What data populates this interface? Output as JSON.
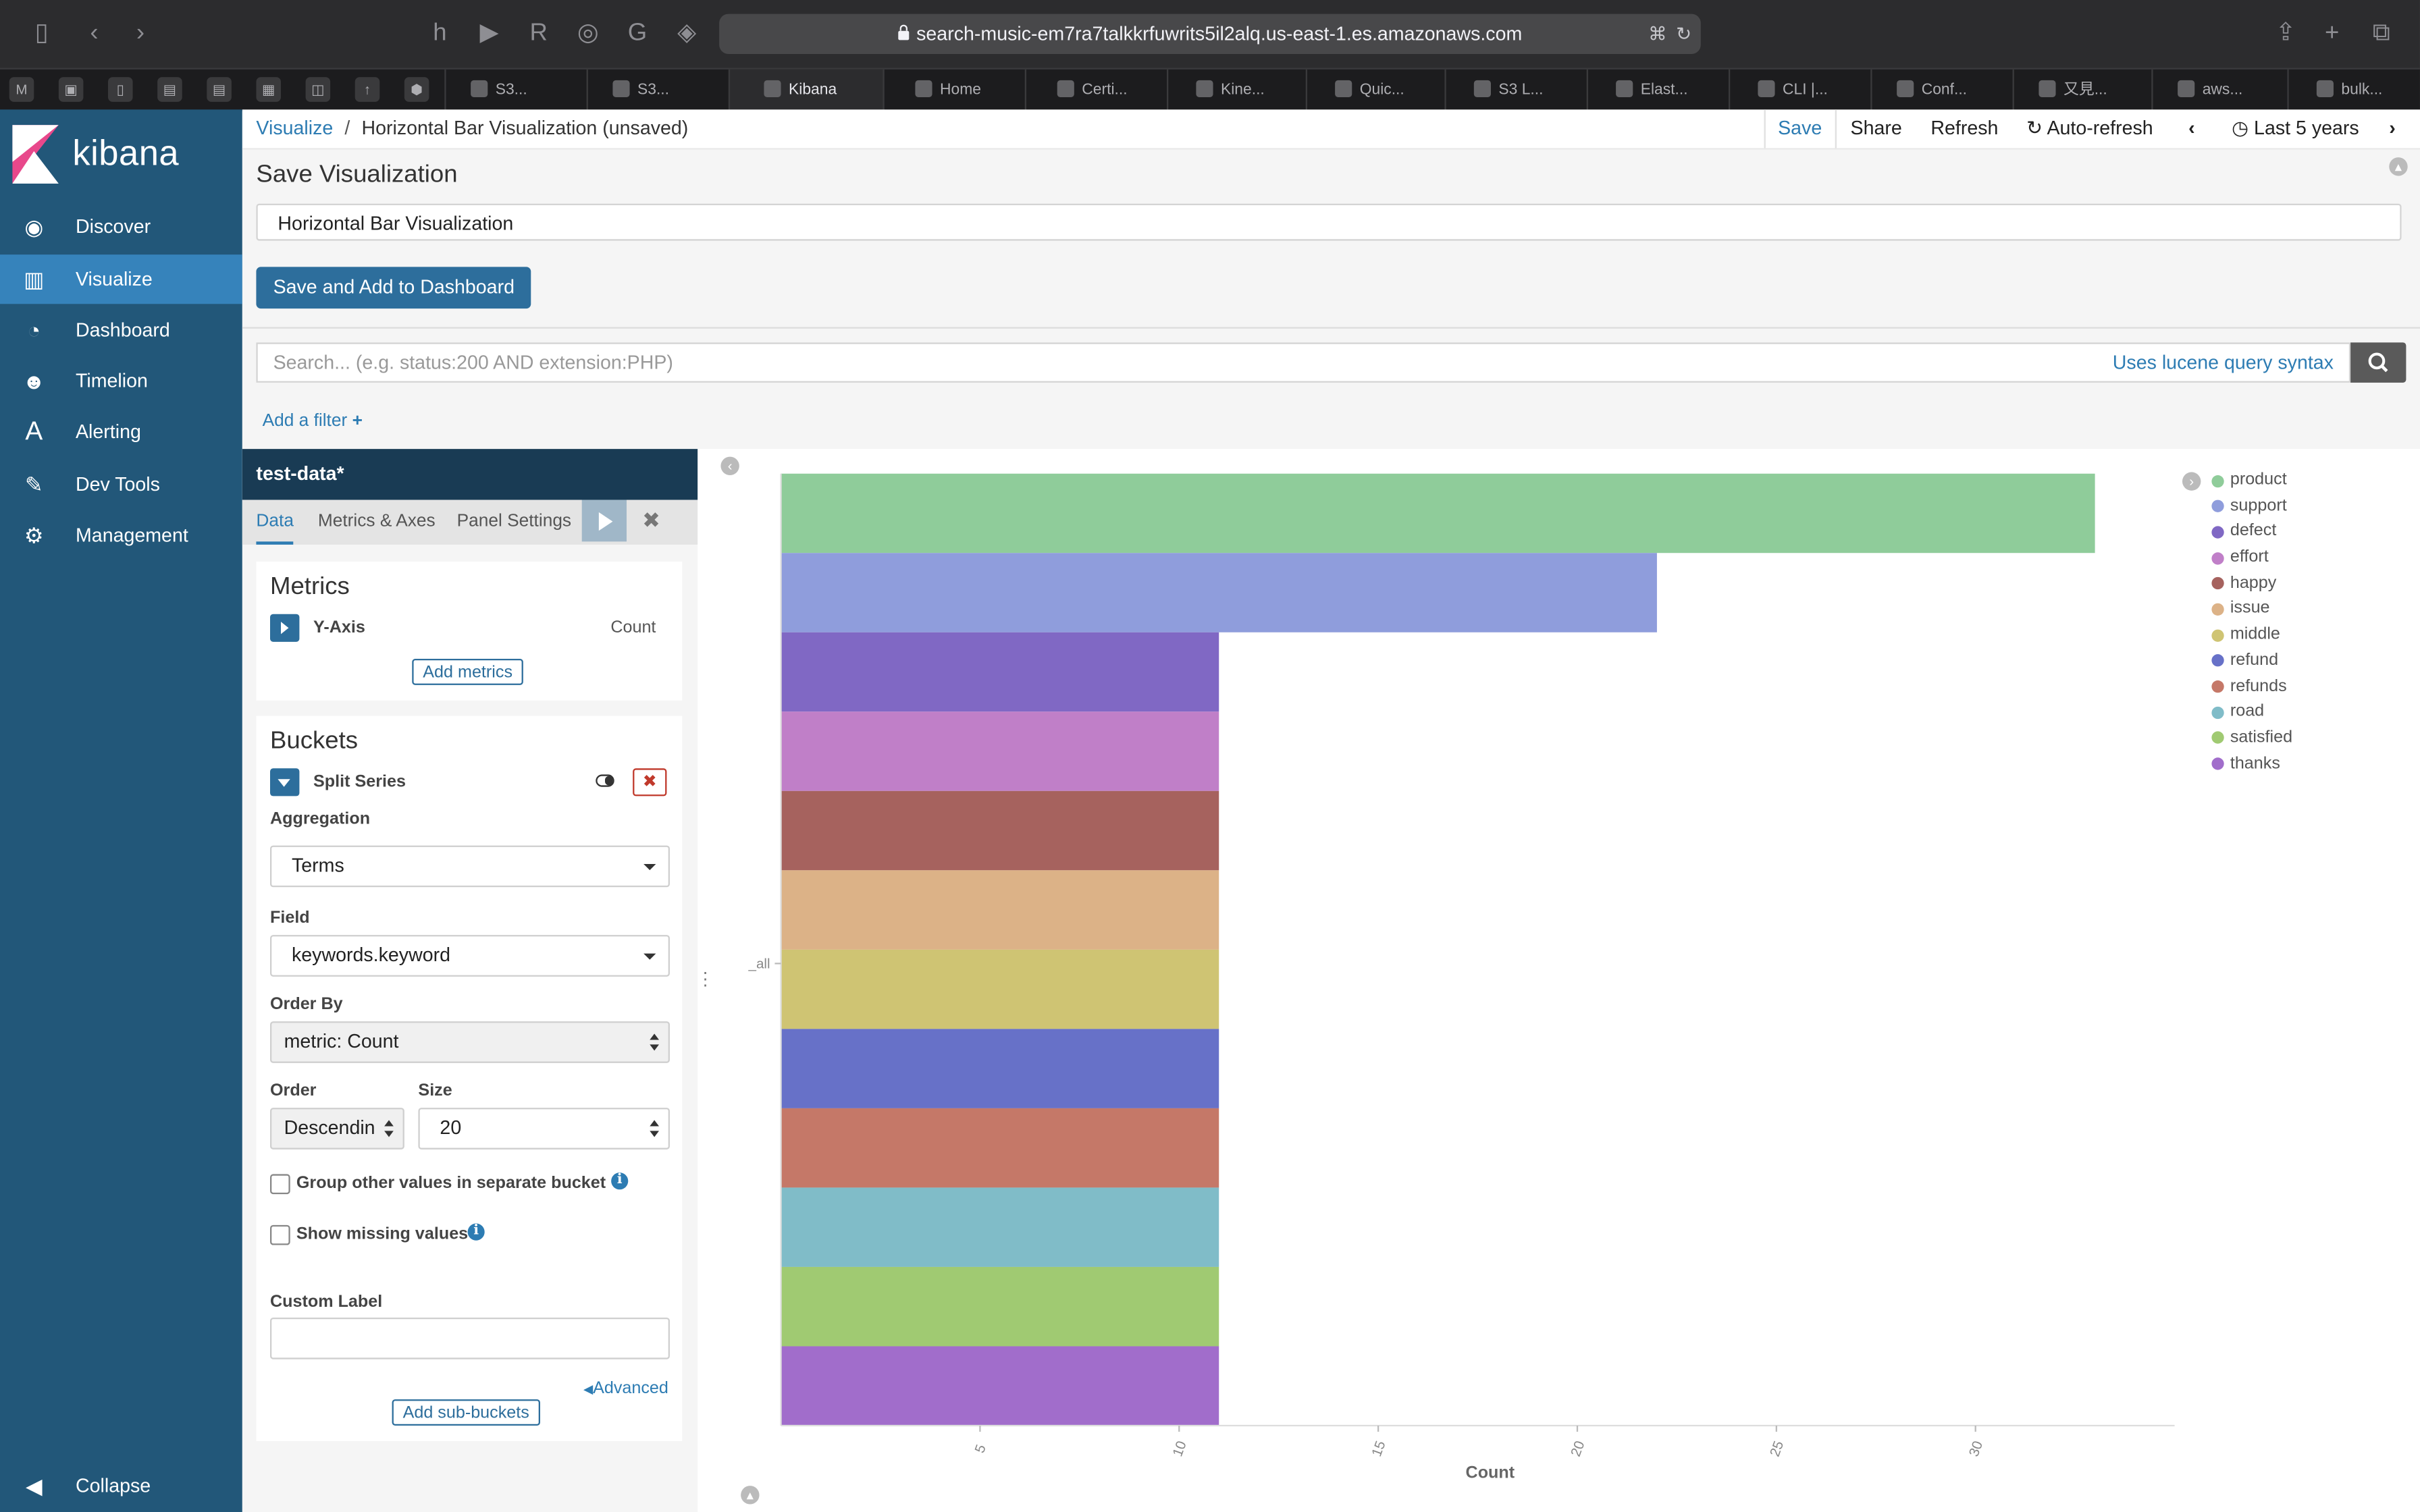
{
  "browser": {
    "url": "search-music-em7ra7talkkrfuwrits5il2alq.us-east-1.es.amazonaws.com",
    "tabs": [
      "S3...",
      "S3...",
      "Kibana",
      "Home",
      "Certi...",
      "Kine...",
      "Quic...",
      "S3 L...",
      "Elast...",
      "CLI |...",
      "Conf...",
      "又見...",
      "aws...",
      "bulk..."
    ]
  },
  "sidebar": {
    "brand": "kibana",
    "items": [
      {
        "label": "Discover",
        "icon": "compass-icon"
      },
      {
        "label": "Visualize",
        "icon": "bar-chart-icon"
      },
      {
        "label": "Dashboard",
        "icon": "dashboard-gauge-icon"
      },
      {
        "label": "Timelion",
        "icon": "timelion-mask-icon"
      },
      {
        "label": "Alerting",
        "icon": "alerting-a-icon"
      },
      {
        "label": "Dev Tools",
        "icon": "wrench-icon"
      },
      {
        "label": "Management",
        "icon": "gear-icon"
      }
    ],
    "collapse": "Collapse"
  },
  "topbar": {
    "breadcrumb_root": "Visualize",
    "breadcrumb_sep": "/",
    "breadcrumb_current": "Horizontal Bar Visualization (unsaved)",
    "save": "Save",
    "share": "Share",
    "refresh": "Refresh",
    "auto_refresh": "Auto-refresh",
    "time_range": "Last 5 years"
  },
  "save_panel": {
    "title": "Save Visualization",
    "name_value": "Horizontal Bar Visualization",
    "save_button": "Save and Add to Dashboard"
  },
  "query": {
    "placeholder": "Search... (e.g. status:200 AND extension:PHP)",
    "syntax_link": "Uses lucene query syntax",
    "add_filter": "Add a filter"
  },
  "editor": {
    "index_name": "test-data*",
    "tabs": [
      "Data",
      "Metrics & Axes",
      "Panel Settings"
    ],
    "metrics": {
      "title": "Metrics",
      "y_axis": "Y-Axis",
      "y_axis_agg": "Count",
      "add_button": "Add metrics"
    },
    "buckets": {
      "title": "Buckets",
      "split": "Split Series",
      "aggregation_label": "Aggregation",
      "aggregation_value": "Terms",
      "field_label": "Field",
      "field_value": "keywords.keyword",
      "order_by_label": "Order By",
      "order_by_value": "metric: Count",
      "order_label": "Order",
      "order_value": "Descendin",
      "size_label": "Size",
      "size_value": "20",
      "group_other": "Group other values in separate bucket",
      "show_missing": "Show missing values",
      "custom_label": "Custom Label",
      "advanced": "Advanced",
      "add_sub": "Add sub-buckets"
    }
  },
  "chart_data": {
    "type": "bar",
    "orientation": "horizontal",
    "category_axis_label": "_all",
    "xlabel": "Count",
    "ticks": [
      5,
      10,
      15,
      20,
      25,
      30
    ],
    "xlim": [
      0,
      35
    ],
    "series": [
      {
        "name": "product",
        "value": 33,
        "color": "#8fcc9a"
      },
      {
        "name": "support",
        "value": 22,
        "color": "#8f9ddc"
      },
      {
        "name": "defect",
        "value": 11,
        "color": "#8068c4"
      },
      {
        "name": "effort",
        "value": 11,
        "color": "#c07fc8"
      },
      {
        "name": "happy",
        "value": 11,
        "color": "#a6625e"
      },
      {
        "name": "issue",
        "value": 11,
        "color": "#dcb287"
      },
      {
        "name": "middle",
        "value": 11,
        "color": "#cfc473"
      },
      {
        "name": "refund",
        "value": 11,
        "color": "#6771c8"
      },
      {
        "name": "refunds",
        "value": 11,
        "color": "#c57868"
      },
      {
        "name": "road",
        "value": 11,
        "color": "#80bcc8"
      },
      {
        "name": "satisfied",
        "value": 11,
        "color": "#a0ca72"
      },
      {
        "name": "thanks",
        "value": 11,
        "color": "#a16dcb"
      }
    ]
  },
  "colors": {
    "sidebar": "#225779",
    "sidebar_active": "#3683bb",
    "accent": "#2d7cb3",
    "primary_button": "#2d6e9c",
    "editor_header": "#193b54"
  }
}
